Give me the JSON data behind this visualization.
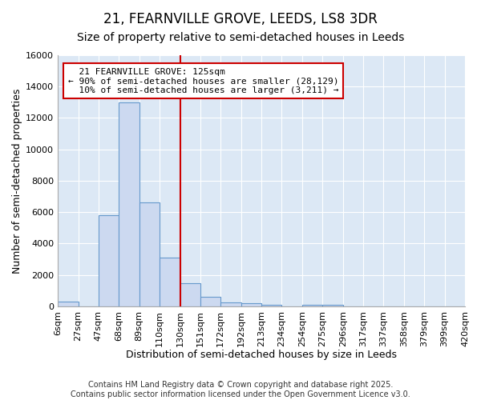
{
  "title": "21, FEARNVILLE GROVE, LEEDS, LS8 3DR",
  "subtitle": "Size of property relative to semi-detached houses in Leeds",
  "xlabel": "Distribution of semi-detached houses by size in Leeds",
  "ylabel": "Number of semi-detached properties",
  "bin_labels": [
    "6sqm",
    "27sqm",
    "47sqm",
    "68sqm",
    "89sqm",
    "110sqm",
    "130sqm",
    "151sqm",
    "172sqm",
    "192sqm",
    "213sqm",
    "234sqm",
    "254sqm",
    "275sqm",
    "296sqm",
    "317sqm",
    "337sqm",
    "358sqm",
    "379sqm",
    "399sqm",
    "420sqm"
  ],
  "bar_values": [
    300,
    0,
    5800,
    13000,
    6600,
    3100,
    1500,
    600,
    250,
    200,
    100,
    0,
    100,
    100,
    0,
    0,
    0,
    0,
    0,
    0
  ],
  "bar_color": "#ccd9f0",
  "bar_edge_color": "#6699cc",
  "ylim": [
    0,
    16000
  ],
  "yticks": [
    0,
    2000,
    4000,
    6000,
    8000,
    10000,
    12000,
    14000,
    16000
  ],
  "vline_index": 6,
  "vline_color": "#cc0000",
  "annotation_text": "  21 FEARNVILLE GROVE: 125sqm  \n← 90% of semi-detached houses are smaller (28,129)\n  10% of semi-detached houses are larger (3,211) →",
  "annotation_box_color": "#ffffff",
  "annotation_box_edge": "#cc0000",
  "footer_line1": "Contains HM Land Registry data © Crown copyright and database right 2025.",
  "footer_line2": "Contains public sector information licensed under the Open Government Licence v3.0.",
  "fig_bg_color": "#ffffff",
  "plot_bg_color": "#dce8f5",
  "grid_color": "#ffffff",
  "title_fontsize": 12,
  "subtitle_fontsize": 10,
  "axis_label_fontsize": 9,
  "tick_fontsize": 8,
  "footer_fontsize": 7
}
